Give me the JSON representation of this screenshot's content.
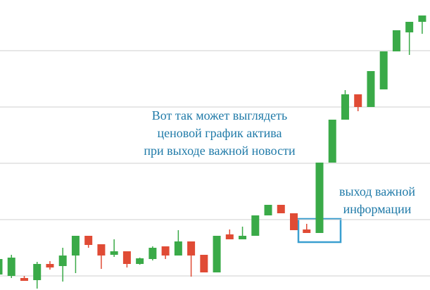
{
  "chart_data": {
    "type": "candlestick",
    "categories": [
      null,
      null,
      null,
      null,
      null,
      null,
      null,
      null,
      null,
      null,
      null,
      null,
      null,
      null,
      null,
      null,
      null,
      null,
      null,
      null,
      null,
      null,
      null,
      null,
      null,
      null,
      null,
      null,
      null,
      null,
      null,
      null,
      null,
      null
    ],
    "open": [
      22,
      20,
      17,
      14,
      37,
      34,
      49,
      77,
      65,
      50,
      55,
      37,
      44,
      62,
      49,
      69,
      50,
      25,
      79,
      72,
      77,
      106,
      121,
      109,
      86,
      81,
      181,
      242,
      278,
      260,
      285,
      339,
      366,
      381
    ],
    "high": [
      44,
      50,
      20,
      40,
      41,
      60,
      77,
      77,
      65,
      72,
      55,
      46,
      62,
      62,
      85,
      69,
      50,
      77,
      86,
      90,
      106,
      121,
      121,
      109,
      94,
      181,
      242,
      284,
      278,
      311,
      339,
      369,
      381,
      390
    ],
    "low": [
      22,
      17,
      13,
      2,
      29,
      12,
      24,
      60,
      30,
      47,
      32,
      36,
      42,
      44,
      49,
      19,
      25,
      25,
      72,
      72,
      77,
      106,
      109,
      85,
      81,
      81,
      181,
      242,
      254,
      260,
      285,
      339,
      334,
      364
    ],
    "close": [
      44,
      46,
      13,
      37,
      32,
      49,
      77,
      64,
      49,
      55,
      37,
      45,
      60,
      49,
      69,
      49,
      25,
      77,
      72,
      77,
      106,
      121,
      109,
      85,
      81,
      181,
      242,
      278,
      260,
      311,
      339,
      369,
      381,
      390
    ],
    "up_color": "#3aaa48",
    "down_color": "#e04b35",
    "ylim": [
      0,
      412
    ],
    "yticks": [
      20,
      100,
      180,
      260,
      340
    ],
    "grid": true,
    "annotations": [
      [
        "Вот так может выглядеть",
        "ценовой график актива",
        "при выходе важной новости"
      ],
      [
        "выход важной",
        "информации"
      ]
    ]
  }
}
